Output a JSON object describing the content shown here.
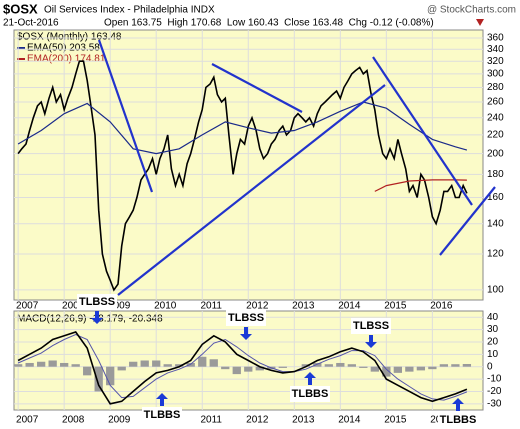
{
  "chart_data": {
    "type": "line",
    "symbol": "$OSX",
    "title": "Oil Services Index - Philadelphia INDX",
    "source": "@ StockCharts.com",
    "date": "21-Oct-2016",
    "quote": "Open 163.75  High 170.68  Low 160.43  Close 163.48  Chg -0.12 (-0.08%)",
    "log_scale": true,
    "grid": true,
    "background": "#fbfbc8",
    "xlim": [
      2006.91,
      2017.1
    ],
    "xticks": [
      2007,
      2008,
      2009,
      2010,
      2011,
      2012,
      2013,
      2014,
      2015,
      2016
    ],
    "ylim": [
      95,
      375
    ],
    "yticks": [
      100,
      120,
      140,
      160,
      180,
      200,
      220,
      240,
      260,
      280,
      300,
      320,
      340,
      360
    ],
    "series": [
      {
        "name": "$OSX (Monthly) 163.48",
        "color": "#000000",
        "x": [
          2007.0,
          2007.08,
          2007.17,
          2007.25,
          2007.33,
          2007.42,
          2007.5,
          2007.58,
          2007.67,
          2007.75,
          2007.83,
          2007.92,
          2008.0,
          2008.08,
          2008.17,
          2008.25,
          2008.33,
          2008.42,
          2008.5,
          2008.58,
          2008.67,
          2008.75,
          2008.83,
          2008.92,
          2009.0,
          2009.08,
          2009.17,
          2009.25,
          2009.33,
          2009.42,
          2009.5,
          2009.58,
          2009.67,
          2009.75,
          2009.83,
          2009.92,
          2010.0,
          2010.08,
          2010.17,
          2010.25,
          2010.33,
          2010.42,
          2010.5,
          2010.58,
          2010.67,
          2010.75,
          2010.83,
          2010.92,
          2011.0,
          2011.08,
          2011.17,
          2011.25,
          2011.33,
          2011.42,
          2011.5,
          2011.58,
          2011.67,
          2011.75,
          2011.83,
          2011.92,
          2012.0,
          2012.08,
          2012.17,
          2012.25,
          2012.33,
          2012.42,
          2012.5,
          2012.58,
          2012.67,
          2012.75,
          2012.83,
          2012.92,
          2013.0,
          2013.08,
          2013.17,
          2013.25,
          2013.33,
          2013.42,
          2013.5,
          2013.58,
          2013.67,
          2013.75,
          2013.83,
          2013.92,
          2014.0,
          2014.08,
          2014.17,
          2014.25,
          2014.33,
          2014.42,
          2014.5,
          2014.58,
          2014.67,
          2014.75,
          2014.83,
          2014.92,
          2015.0,
          2015.08,
          2015.17,
          2015.25,
          2015.33,
          2015.42,
          2015.5,
          2015.58,
          2015.67,
          2015.75,
          2015.83,
          2015.92,
          2016.0,
          2016.08,
          2016.17,
          2016.25,
          2016.33,
          2016.42,
          2016.5,
          2016.58,
          2016.67,
          2016.75
        ],
        "values": [
          200,
          205,
          210,
          225,
          240,
          255,
          260,
          245,
          265,
          280,
          260,
          270,
          250,
          265,
          280,
          300,
          320,
          320,
          290,
          255,
          220,
          150,
          120,
          110,
          105,
          100,
          103,
          125,
          140,
          145,
          150,
          160,
          175,
          180,
          185,
          195,
          180,
          195,
          205,
          220,
          185,
          170,
          180,
          170,
          190,
          200,
          215,
          235,
          250,
          280,
          285,
          295,
          270,
          260,
          265,
          220,
          180,
          200,
          215,
          210,
          230,
          240,
          225,
          205,
          195,
          200,
          210,
          215,
          225,
          230,
          220,
          225,
          240,
          245,
          240,
          235,
          240,
          230,
          245,
          255,
          260,
          265,
          270,
          275,
          265,
          280,
          290,
          300,
          305,
          310,
          300,
          305,
          270,
          250,
          220,
          200,
          195,
          205,
          195,
          215,
          200,
          185,
          165,
          170,
          160,
          180,
          175,
          160,
          145,
          140,
          150,
          165,
          165,
          170,
          160,
          160,
          170,
          163.48
        ]
      },
      {
        "name": "EMA(50) 203.58",
        "color": "#1a2a8a",
        "x": [
          2007.0,
          2007.5,
          2008.0,
          2008.5,
          2009.0,
          2009.5,
          2010.0,
          2010.5,
          2011.0,
          2011.5,
          2012.0,
          2012.5,
          2013.0,
          2013.5,
          2014.0,
          2014.5,
          2015.0,
          2015.5,
          2016.0,
          2016.5,
          2016.75
        ],
        "values": [
          210,
          225,
          245,
          258,
          235,
          205,
          200,
          205,
          220,
          235,
          228,
          222,
          225,
          235,
          248,
          260,
          252,
          232,
          215,
          207,
          203.58
        ]
      },
      {
        "name": "EMA(200) 174.81",
        "color": "#b22222",
        "x": [
          2014.75,
          2015.0,
          2015.5,
          2016.0,
          2016.5,
          2016.75
        ],
        "values": [
          165,
          170,
          174,
          175,
          175,
          174.81
        ]
      }
    ],
    "macd": {
      "title": "MACD(12,26,9) -18.179, -20.348",
      "ylim": [
        -35,
        45
      ],
      "yticks": [
        40,
        30,
        20,
        10,
        0,
        -10,
        -20,
        -30
      ],
      "x": [
        2007.0,
        2007.25,
        2007.5,
        2007.75,
        2008.0,
        2008.25,
        2008.5,
        2008.75,
        2009.0,
        2009.25,
        2009.5,
        2009.75,
        2010.0,
        2010.25,
        2010.5,
        2010.75,
        2011.0,
        2011.25,
        2011.5,
        2011.75,
        2012.0,
        2012.25,
        2012.5,
        2012.75,
        2013.0,
        2013.25,
        2013.5,
        2013.75,
        2014.0,
        2014.25,
        2014.5,
        2014.75,
        2015.0,
        2015.25,
        2015.5,
        2015.75,
        2016.0,
        2016.25,
        2016.5,
        2016.75
      ],
      "macd": {
        "color": "#000000",
        "values": [
          5,
          10,
          15,
          22,
          25,
          28,
          15,
          -15,
          -30,
          -28,
          -20,
          -12,
          -5,
          -3,
          0,
          5,
          18,
          25,
          20,
          10,
          5,
          0,
          -3,
          -5,
          -4,
          0,
          5,
          8,
          12,
          15,
          12,
          5,
          -10,
          -15,
          -20,
          -25,
          -28,
          -25,
          -22,
          -18.179
        ]
      },
      "signal": {
        "color": "#5555aa",
        "values": [
          3,
          7,
          11,
          17,
          22,
          26,
          22,
          5,
          -15,
          -25,
          -24,
          -17,
          -10,
          -5,
          -2,
          2,
          10,
          19,
          22,
          16,
          9,
          3,
          -1,
          -4,
          -4,
          -2,
          2,
          6,
          9,
          13,
          13,
          9,
          -2,
          -10,
          -16,
          -22,
          -26,
          -27,
          -24,
          -20.348
        ]
      },
      "histogram": {
        "color": "#9a9a9a",
        "values": [
          2,
          3,
          4,
          5,
          3,
          2,
          -7,
          -20,
          -15,
          -3,
          4,
          5,
          5,
          2,
          2,
          3,
          8,
          6,
          -2,
          -6,
          -4,
          -3,
          -2,
          -1,
          0,
          2,
          3,
          2,
          3,
          2,
          -1,
          -4,
          -8,
          -5,
          -4,
          -3,
          -2,
          2,
          2,
          2.17
        ]
      }
    },
    "annotations": [
      "TLBSS",
      "TLBBS",
      "TLBSS",
      "TLBBS",
      "TLBSS",
      "TLBBS"
    ]
  }
}
